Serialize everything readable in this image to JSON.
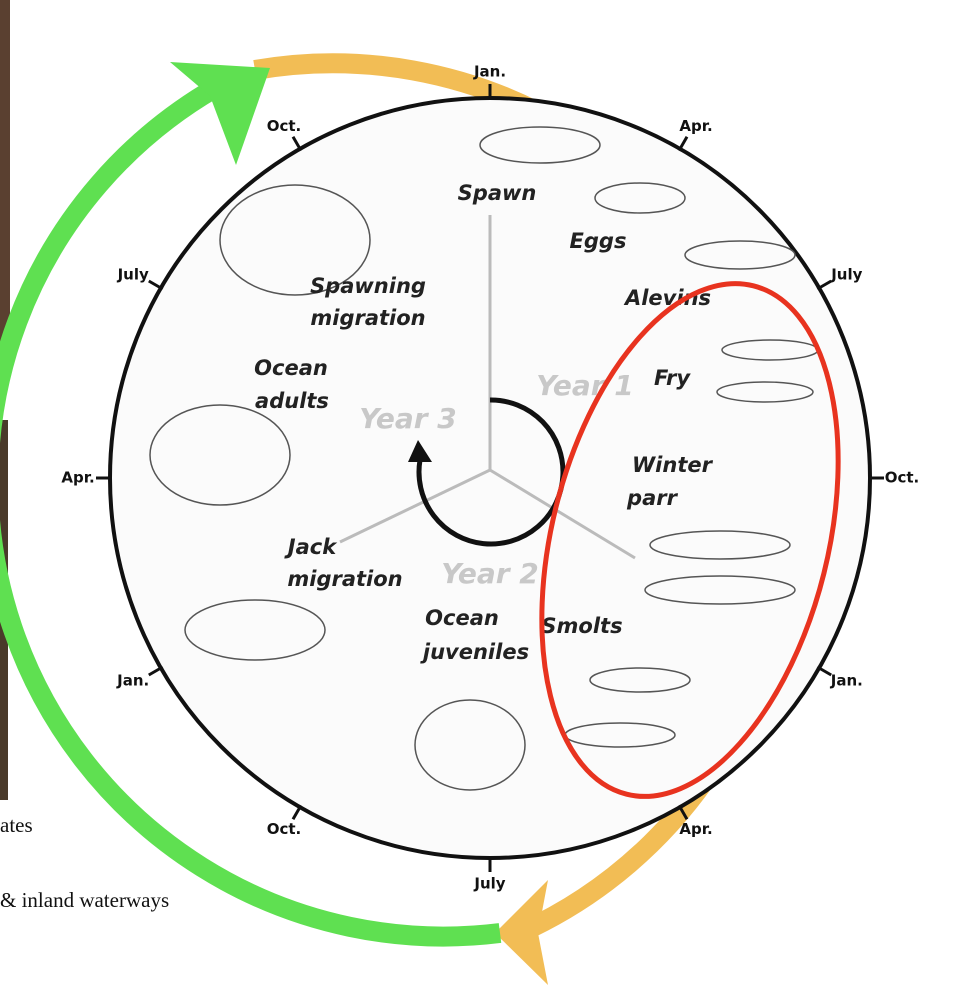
{
  "months": [
    "Jan.",
    "Apr.",
    "July",
    "Oct.",
    "Jan.",
    "Apr.",
    "July",
    "Oct.",
    "Jan.",
    "Apr.",
    "July",
    "Oct."
  ],
  "stages": [
    {
      "lines": [
        "Spawn"
      ]
    },
    {
      "lines": [
        "Eggs"
      ]
    },
    {
      "lines": [
        "Alevins"
      ]
    },
    {
      "lines": [
        "Fry"
      ]
    },
    {
      "lines": [
        "Winter",
        "parr"
      ]
    },
    {
      "lines": [
        "Smolts"
      ]
    },
    {
      "lines": [
        "Ocean",
        "juveniles"
      ]
    },
    {
      "lines": [
        "Jack",
        "migration"
      ]
    },
    {
      "lines": [
        "Ocean",
        "adults"
      ]
    },
    {
      "lines": [
        "Spawning",
        "migration"
      ]
    }
  ],
  "years": [
    "Year 1",
    "Year 2",
    "Year 3"
  ],
  "footer": [
    "ates",
    "& inland waterways"
  ]
}
